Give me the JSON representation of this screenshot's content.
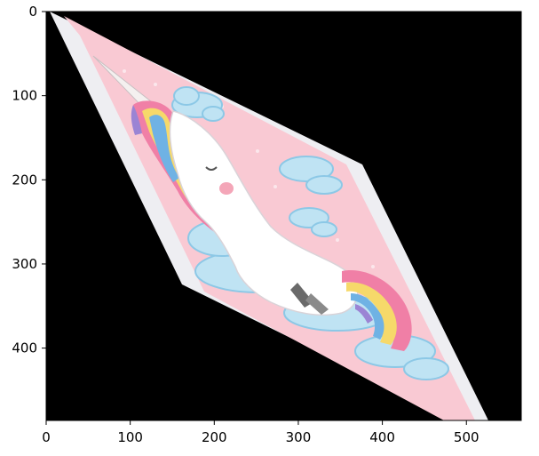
{
  "x_ticks": [
    "0",
    "100",
    "200",
    "300",
    "400",
    "500"
  ],
  "y_ticks": [
    "0",
    "100",
    "200",
    "300",
    "400"
  ],
  "colors": {
    "background": "#000000",
    "card_pink": "#f9c9d3",
    "border_white": "#eeeef2",
    "cloud": "#bfe3f3",
    "cloud_edge": "#8cc8e6",
    "unicorn_body": "#ffffff",
    "mane_pink": "#f07fa6",
    "mane_yellow": "#f6d96a",
    "mane_blue": "#6fb2e4",
    "mane_purple": "#9b84d4"
  },
  "image_subject": "unicorn-illustration"
}
